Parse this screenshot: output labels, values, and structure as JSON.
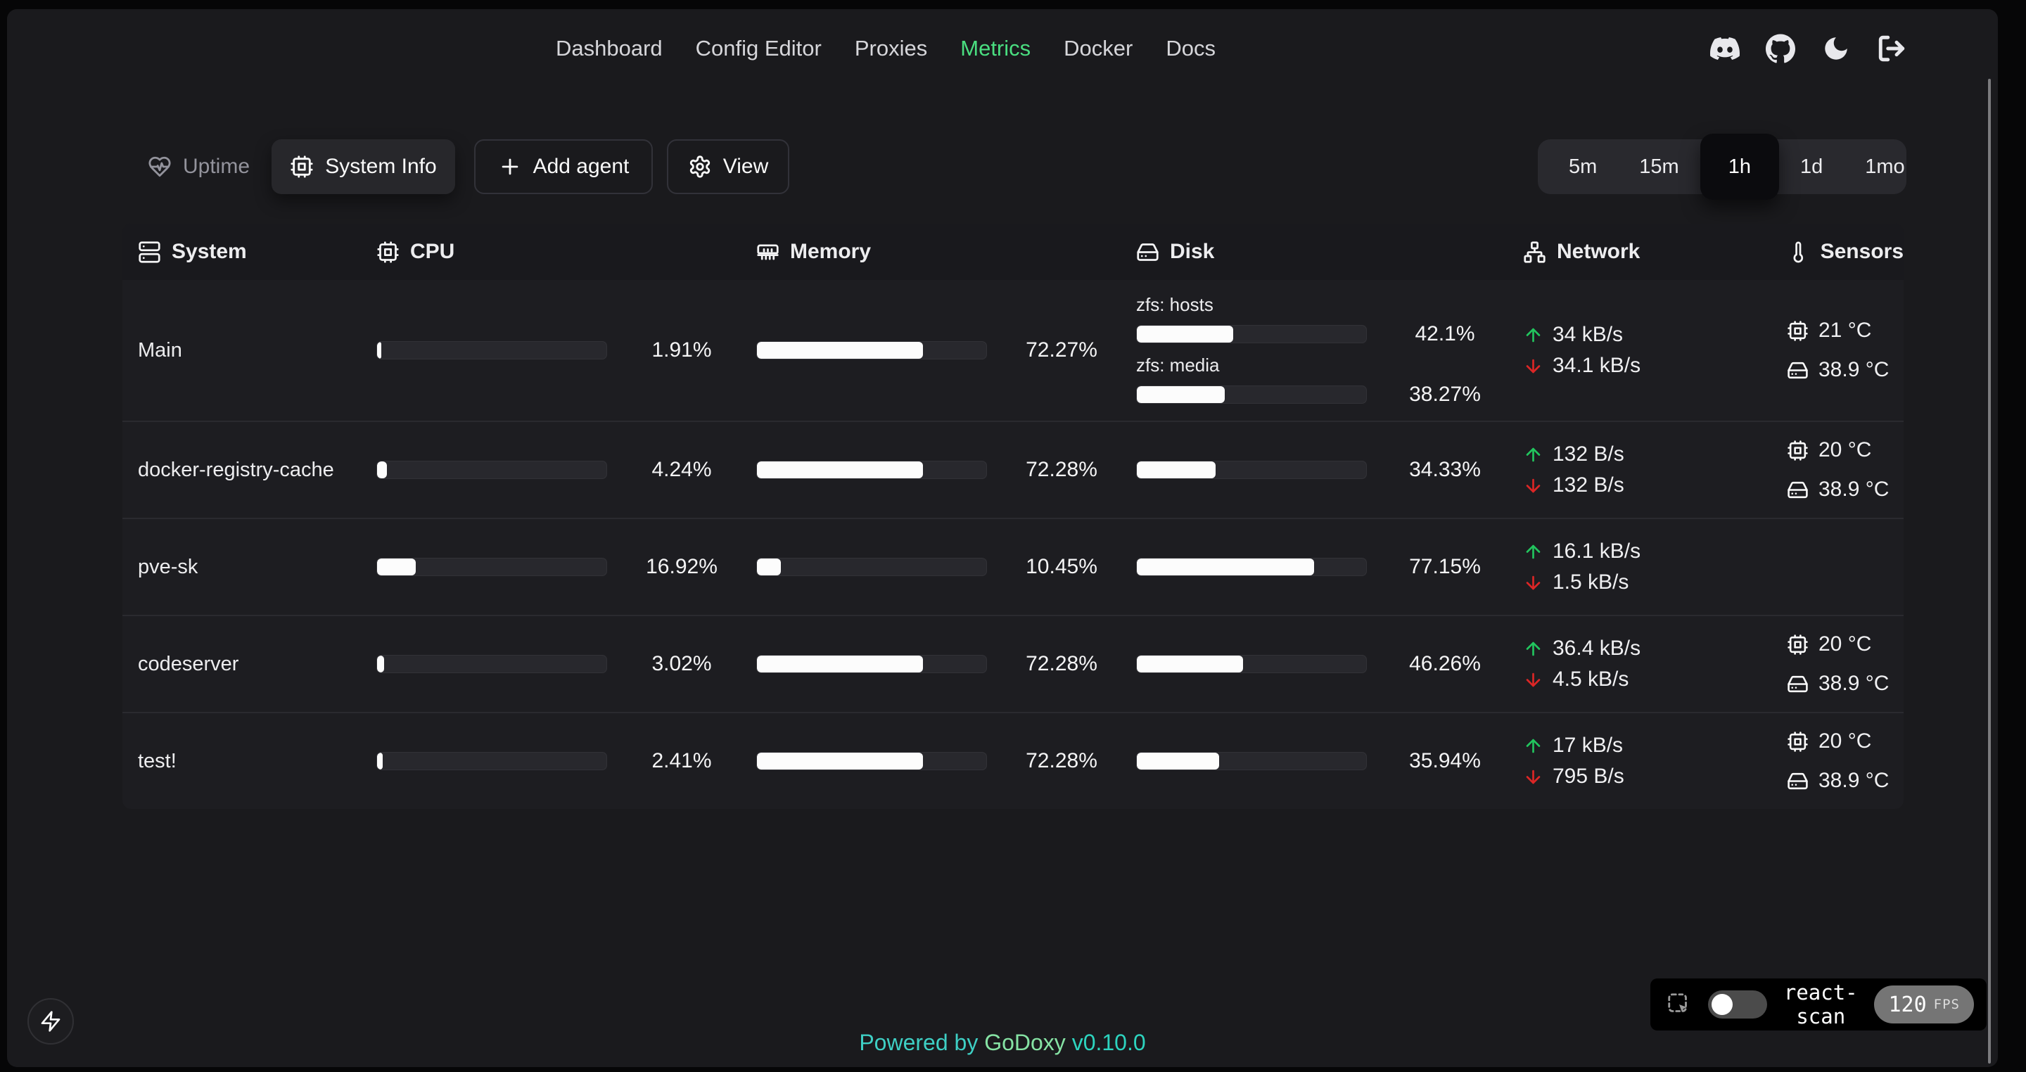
{
  "nav": {
    "links": [
      {
        "label": "Dashboard",
        "active": false
      },
      {
        "label": "Config Editor",
        "active": false
      },
      {
        "label": "Proxies",
        "active": false
      },
      {
        "label": "Metrics",
        "active": true
      },
      {
        "label": "Docker",
        "active": false
      },
      {
        "label": "Docs",
        "active": false
      }
    ],
    "icon_buttons": [
      "discord-icon",
      "github-icon",
      "theme-moon-icon",
      "logout-icon"
    ]
  },
  "toolbar": {
    "uptime_label": "Uptime",
    "system_info_label": "System Info",
    "add_agent_label": "Add agent",
    "view_label": "View",
    "time_ranges": [
      "5m",
      "15m",
      "1h",
      "1d",
      "1mo"
    ],
    "selected_time_range": "1h"
  },
  "table": {
    "headers": {
      "system": "System",
      "cpu": "CPU",
      "memory": "Memory",
      "disk": "Disk",
      "network": "Network",
      "sensors": "Sensors"
    },
    "rows": [
      {
        "system": "Main",
        "cpu_value": 1.91,
        "cpu_pct": "1.91%",
        "memory_value": 72.27,
        "memory_pct": "72.27%",
        "disks": [
          {
            "label": "zfs: hosts",
            "value": 42.1,
            "pct": "42.1%"
          },
          {
            "label": "zfs: media",
            "value": 38.27,
            "pct": "38.27%"
          }
        ],
        "net_up": "34 kB/s",
        "net_down": "34.1 kB/s",
        "sensors": [
          {
            "icon": "cpu",
            "temp": "21 °C"
          },
          {
            "icon": "disk",
            "temp": "38.9 °C"
          }
        ]
      },
      {
        "system": "docker-registry-cache",
        "cpu_value": 4.24,
        "cpu_pct": "4.24%",
        "memory_value": 72.28,
        "memory_pct": "72.28%",
        "disks": [
          {
            "label": null,
            "value": 34.33,
            "pct": "34.33%"
          }
        ],
        "net_up": "132 B/s",
        "net_down": "132 B/s",
        "sensors": [
          {
            "icon": "cpu",
            "temp": "20 °C"
          },
          {
            "icon": "disk",
            "temp": "38.9 °C"
          }
        ]
      },
      {
        "system": "pve-sk",
        "cpu_value": 16.92,
        "cpu_pct": "16.92%",
        "memory_value": 10.45,
        "memory_pct": "10.45%",
        "disks": [
          {
            "label": null,
            "value": 77.15,
            "pct": "77.15%"
          }
        ],
        "net_up": "16.1 kB/s",
        "net_down": "1.5 kB/s",
        "sensors": []
      },
      {
        "system": "codeserver",
        "cpu_value": 3.02,
        "cpu_pct": "3.02%",
        "memory_value": 72.28,
        "memory_pct": "72.28%",
        "disks": [
          {
            "label": null,
            "value": 46.26,
            "pct": "46.26%"
          }
        ],
        "net_up": "36.4 kB/s",
        "net_down": "4.5 kB/s",
        "sensors": [
          {
            "icon": "cpu",
            "temp": "20 °C"
          },
          {
            "icon": "disk",
            "temp": "38.9 °C"
          }
        ]
      },
      {
        "system": "test!",
        "cpu_value": 2.41,
        "cpu_pct": "2.41%",
        "memory_value": 72.28,
        "memory_pct": "72.28%",
        "disks": [
          {
            "label": null,
            "value": 35.94,
            "pct": "35.94%"
          }
        ],
        "net_up": "17 kB/s",
        "net_down": "795 B/s",
        "sensors": [
          {
            "icon": "cpu",
            "temp": "20 °C"
          },
          {
            "icon": "disk",
            "temp": "38.9 °C"
          }
        ]
      }
    ]
  },
  "footer": {
    "powered_by": "Powered by",
    "brand": "GoDoxy",
    "version": "v0.10.0"
  },
  "react_scan": {
    "label": "react-scan",
    "fps": "120",
    "fps_unit": "FPS",
    "toggle_on": false
  },
  "colors": {
    "accent_green": "#4ade80",
    "net_up": "#22c55e",
    "net_down": "#dc2626",
    "footer_teal": "#3ecfc4",
    "footer_green": "#86e3a4",
    "panel_bg": "#1a1a1d",
    "row_bg": "#1d1d21",
    "bar_fill": "#fcfcfc"
  }
}
